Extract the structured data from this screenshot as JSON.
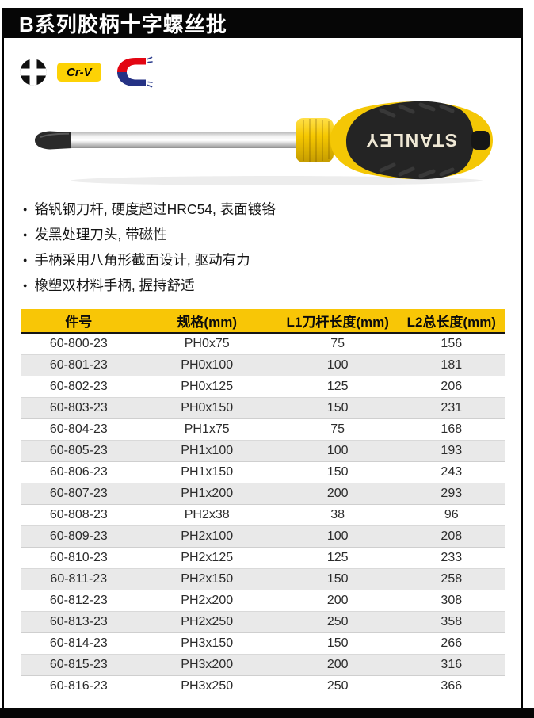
{
  "header": {
    "title": "B系列胶柄十字螺丝批"
  },
  "badges": {
    "phillips_icon": "phillips-bit",
    "crv_label": "Cr-V",
    "magnet_icon": "magnetic-tip"
  },
  "product": {
    "brand": "STANLEY"
  },
  "features": [
    "铬钒钢刀杆, 硬度超过HRC54, 表面镀铬",
    "发黑处理刀头, 带磁性",
    "手柄采用八角形截面设计, 驱动有力",
    "橡塑双材料手柄, 握持舒适"
  ],
  "table": {
    "headers": [
      "件号",
      "规格(mm)",
      "L1刀杆长度(mm)",
      "L2总长度(mm)"
    ],
    "rows": [
      [
        "60-800-23",
        "PH0x75",
        "75",
        "156"
      ],
      [
        "60-801-23",
        "PH0x100",
        "100",
        "181"
      ],
      [
        "60-802-23",
        "PH0x125",
        "125",
        "206"
      ],
      [
        "60-803-23",
        "PH0x150",
        "150",
        "231"
      ],
      [
        "60-804-23",
        "PH1x75",
        "75",
        "168"
      ],
      [
        "60-805-23",
        "PH1x100",
        "100",
        "193"
      ],
      [
        "60-806-23",
        "PH1x150",
        "150",
        "243"
      ],
      [
        "60-807-23",
        "PH1x200",
        "200",
        "293"
      ],
      [
        "60-808-23",
        "PH2x38",
        "38",
        "96"
      ],
      [
        "60-809-23",
        "PH2x100",
        "100",
        "208"
      ],
      [
        "60-810-23",
        "PH2x125",
        "125",
        "233"
      ],
      [
        "60-811-23",
        "PH2x150",
        "150",
        "258"
      ],
      [
        "60-812-23",
        "PH2x200",
        "200",
        "308"
      ],
      [
        "60-813-23",
        "PH2x250",
        "250",
        "358"
      ],
      [
        "60-814-23",
        "PH3x150",
        "150",
        "266"
      ],
      [
        "60-815-23",
        "PH3x200",
        "200",
        "316"
      ],
      [
        "60-816-23",
        "PH3x250",
        "250",
        "366"
      ]
    ]
  },
  "colors": {
    "brand_yellow": "#f8c606",
    "badge_yellow": "#fdd205",
    "magnet_red": "#e30613",
    "magnet_blue": "#253285",
    "alt_row": "#e9e9e9",
    "bar_black": "#060606"
  }
}
